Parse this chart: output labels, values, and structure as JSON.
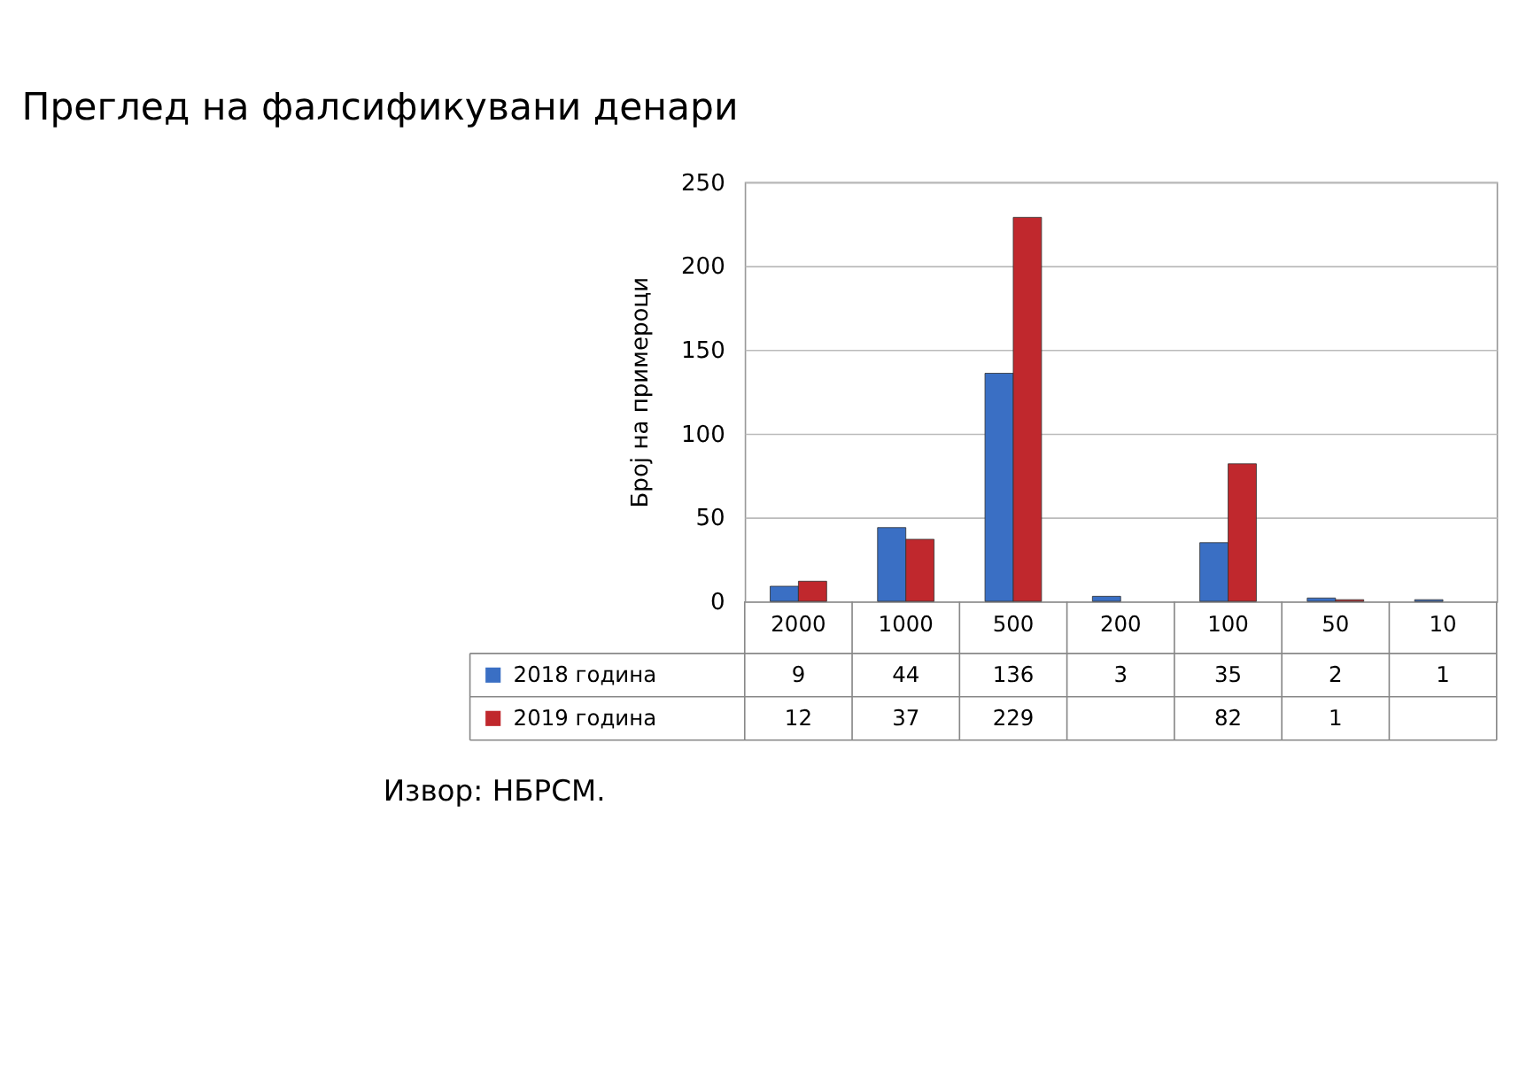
{
  "chart_data": {
    "type": "bar",
    "title": "Преглед на фалсификувани денари",
    "ylabel": "Број на примероци",
    "categories": [
      "2000",
      "1000",
      "500",
      "200",
      "100",
      "50",
      "10"
    ],
    "series": [
      {
        "name": "2018 година",
        "color": "#3a6fc4",
        "values": [
          9,
          44,
          136,
          3,
          35,
          2,
          1
        ]
      },
      {
        "name": "2019 година",
        "color": "#c0282d",
        "values": [
          12,
          37,
          229,
          null,
          82,
          1,
          null
        ]
      }
    ],
    "ylim": [
      0,
      250
    ],
    "yticks": [
      0,
      50,
      100,
      150,
      200,
      250
    ],
    "grid": "y",
    "legend": "bottom",
    "data_labels": true,
    "annotations": [
      "Извор: НБРСМ."
    ]
  }
}
